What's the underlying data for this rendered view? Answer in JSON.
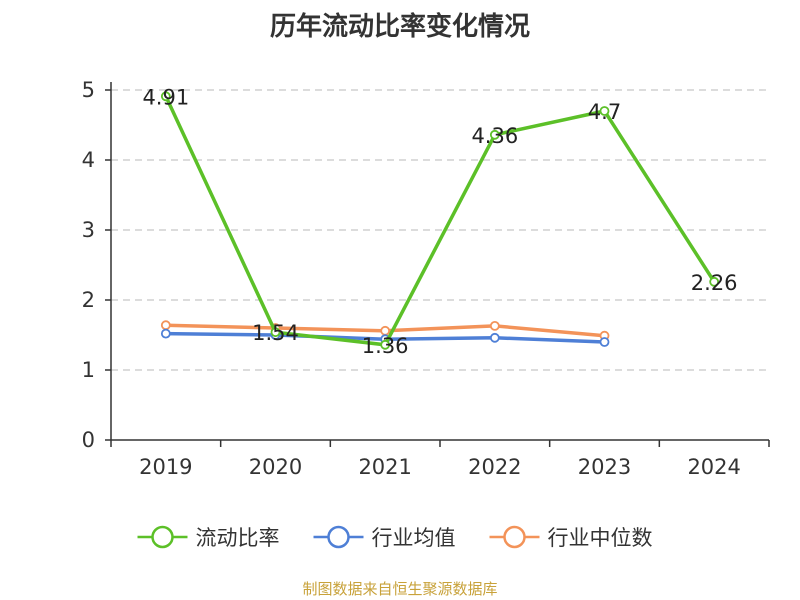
{
  "source_text": "制图数据来自恒生聚源数据库",
  "chart_data": {
    "type": "line",
    "title": "历年流动比率变化情况",
    "categories": [
      "2019",
      "2020",
      "2021",
      "2022",
      "2023",
      "2024"
    ],
    "y_ticks": [
      "0",
      "1",
      "2",
      "3",
      "4",
      "5"
    ],
    "ylim": [
      0,
      5
    ],
    "grid": true,
    "legend_position": "bottom",
    "series": [
      {
        "name": "流动比率",
        "color": "#5cc028",
        "values": [
          4.91,
          1.54,
          1.36,
          4.36,
          4.7,
          2.26
        ],
        "labels": [
          "4.91",
          "1.54",
          "1.36",
          "4.36",
          "4.7",
          "2.26"
        ]
      },
      {
        "name": "行业均值",
        "color": "#4e7fd6",
        "values": [
          1.52,
          1.5,
          1.44,
          1.46,
          1.4,
          null
        ]
      },
      {
        "name": "行业中位数",
        "color": "#f39359",
        "values": [
          1.64,
          1.6,
          1.56,
          1.63,
          1.49,
          null
        ]
      }
    ]
  }
}
